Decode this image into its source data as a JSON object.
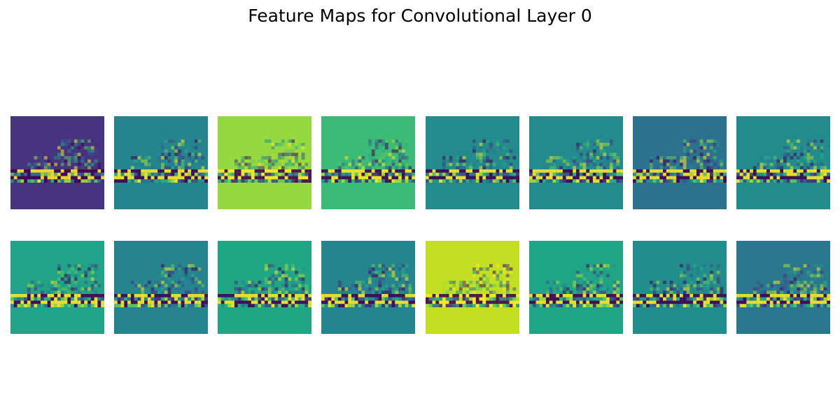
{
  "title": "Feature Maps for Convolutional Layer 0",
  "chart_data": {
    "type": "heatmap",
    "title": "Feature Maps for Convolutional Layer 0",
    "colormap": "viridis",
    "layout": {
      "rows": 2,
      "columns": 8
    },
    "axes_visible": false,
    "maps": [
      {
        "index": 0,
        "background": "#463480"
      },
      {
        "index": 1,
        "background": "#25858e"
      },
      {
        "index": 2,
        "background": "#95d840"
      },
      {
        "index": 3,
        "background": "#3bbb75"
      },
      {
        "index": 4,
        "background": "#238a8d"
      },
      {
        "index": 5,
        "background": "#238a8d"
      },
      {
        "index": 6,
        "background": "#2c728e"
      },
      {
        "index": 7,
        "background": "#228c8d"
      },
      {
        "index": 8,
        "background": "#20a386"
      },
      {
        "index": 9,
        "background": "#25848e"
      },
      {
        "index": 10,
        "background": "#21a685"
      },
      {
        "index": 11,
        "background": "#25858e"
      },
      {
        "index": 12,
        "background": "#c2df23"
      },
      {
        "index": 13,
        "background": "#20a486"
      },
      {
        "index": 14,
        "background": "#228d8d"
      },
      {
        "index": 15,
        "background": "#2a788e"
      }
    ]
  }
}
